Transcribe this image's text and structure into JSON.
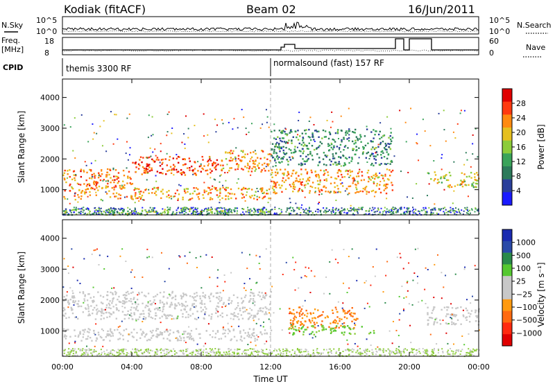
{
  "header": {
    "station": "Kodiak (fitACF)",
    "beam": "Beam 02",
    "date": "16/Jun/2011"
  },
  "top_panels": {
    "nsky_label": "N.Sky",
    "nsky_ticks": [
      "10^5",
      "10^0"
    ],
    "nsearch_label": "N.Search",
    "nsearch_ticks": [
      "10^5",
      "10^0"
    ],
    "freq_label_1": "Freq.",
    "freq_label_2": "[MHz]",
    "freq_ticks": [
      "18",
      "8"
    ],
    "nave_label": "Nave",
    "nave_ticks": [
      "60",
      "0"
    ],
    "cpid_label": "CPID",
    "cpid_segments": [
      {
        "label": "themis 3300 RF",
        "start_hour": 0
      },
      {
        "label": "normalsound (fast) 157 RF",
        "start_hour": 12
      }
    ]
  },
  "colors": {
    "power": [
      "#1a1aff",
      "#2a3f9a",
      "#2c7a5a",
      "#3aa35a",
      "#8ccc3a",
      "#e6c020",
      "#ff8a10",
      "#ff3a10",
      "#e00000"
    ],
    "velocity": [
      "#1a2ab0",
      "#2a4aa8",
      "#2a8a4a",
      "#55c830",
      "#c8c8c8",
      "#c8c8c8",
      "#ff9a10",
      "#ff6a10",
      "#ff2a10",
      "#e00000"
    ]
  },
  "chart_data": [
    {
      "type": "heatmap",
      "panel": "power",
      "ylabel": "Slant Range [km]",
      "ylim": [
        180,
        4600
      ],
      "y_ticks": [
        1000,
        2000,
        3000,
        4000
      ],
      "xlim_hours": [
        0,
        24
      ],
      "colorbar": {
        "label": "Power [dB]",
        "ticks": [
          "4",
          "8",
          "12",
          "16",
          "20",
          "24",
          "28"
        ],
        "range": [
          0,
          32
        ]
      },
      "bands": [
        {
          "t": [
            0,
            12
          ],
          "range_km": [
            700,
            1100
          ],
          "level": 22
        },
        {
          "t": [
            0,
            4
          ],
          "range_km": [
            1100,
            1700
          ],
          "level": 24
        },
        {
          "t": [
            4,
            9
          ],
          "range_km": [
            1500,
            2100
          ],
          "level": 26
        },
        {
          "t": [
            9,
            12
          ],
          "range_km": [
            1600,
            2300
          ],
          "level": 22
        },
        {
          "t": [
            0,
            12
          ],
          "range_km": [
            200,
            400
          ],
          "level": 14
        },
        {
          "t": [
            12,
            19
          ],
          "range_km": [
            900,
            1700
          ],
          "level": 22
        },
        {
          "t": [
            12,
            19
          ],
          "range_km": [
            1800,
            3000
          ],
          "level": 10
        },
        {
          "t": [
            21,
            24
          ],
          "range_km": [
            1100,
            1600
          ],
          "level": 18
        }
      ]
    },
    {
      "type": "heatmap",
      "panel": "velocity",
      "ylabel": "Slant Range [km]",
      "ylim": [
        180,
        4600
      ],
      "y_ticks": [
        1000,
        2000,
        3000,
        4000
      ],
      "xlim_hours": [
        0,
        24
      ],
      "xlabel": "Time UT",
      "x_ticks": [
        "00:00",
        "04:00",
        "08:00",
        "12:00",
        "16:00",
        "20:00",
        "00:00"
      ],
      "colorbar": {
        "label": "Velocity [m s⁻¹]",
        "ticks": [
          "1000",
          "500",
          "100",
          "25",
          "−25",
          "−100",
          "−500",
          "−1000"
        ],
        "range": [
          -1000,
          1000
        ]
      },
      "bands": [
        {
          "t": [
            0,
            12
          ],
          "range_km": [
            700,
            1100
          ],
          "velocity": 0
        },
        {
          "t": [
            0,
            12
          ],
          "range_km": [
            1400,
            2300
          ],
          "velocity": 0
        },
        {
          "t": [
            13,
            17
          ],
          "range_km": [
            1100,
            1800
          ],
          "velocity": -300
        },
        {
          "t": [
            13,
            18
          ],
          "range_km": [
            900,
            1200
          ],
          "velocity": 150
        },
        {
          "t": [
            21,
            24
          ],
          "range_km": [
            1200,
            1800
          ],
          "velocity": 0
        }
      ]
    }
  ]
}
